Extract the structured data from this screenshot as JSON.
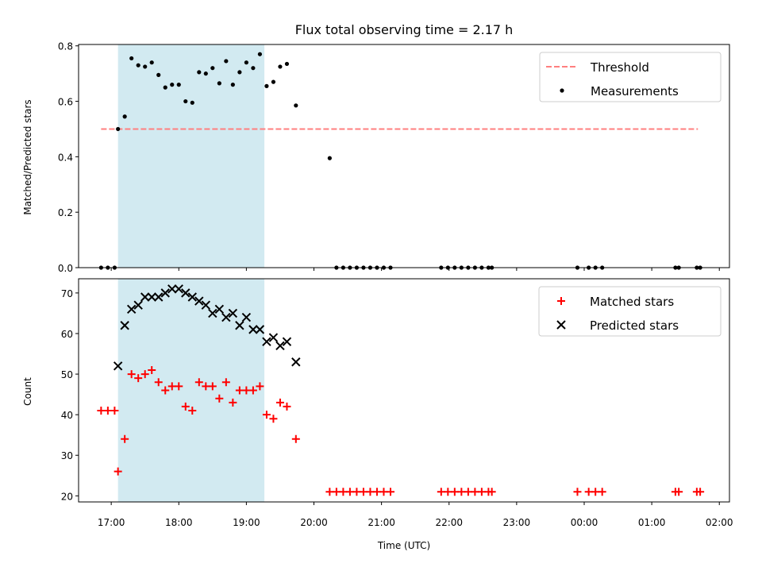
{
  "figure": {
    "title": "Flux total observing time = 2.17 h",
    "xlabel": "Time (UTC)",
    "x_tick_labels": [
      "17:00",
      "18:00",
      "19:00",
      "20:00",
      "21:00",
      "22:00",
      "23:00",
      "00:00",
      "01:00",
      "02:00"
    ]
  },
  "chart_data": [
    {
      "type": "scatter",
      "panel": "top",
      "ylabel": "Matched/Predicted stars",
      "xlim": [
        "16:31",
        "02:09"
      ],
      "ylim": [
        0,
        0.805
      ],
      "y_ticks": [
        0.0,
        0.2,
        0.4,
        0.6,
        0.8
      ],
      "y_tick_labels": [
        "0.0",
        "0.2",
        "0.4",
        "0.6",
        "0.8"
      ],
      "shaded_x_range": [
        "17:06",
        "19:16"
      ],
      "shade_color": "#add8e6",
      "legend_position": "upper right",
      "series": [
        {
          "name": "Threshold",
          "kind": "dashed-line",
          "color": "#ff7f7f",
          "x": [
            "16:51",
            "01:41"
          ],
          "y": [
            0.5,
            0.5
          ]
        },
        {
          "name": "Measurements",
          "kind": "dots",
          "color": "#000000",
          "x": [
            "16:51",
            "16:57",
            "17:03",
            "17:06",
            "17:12",
            "17:18",
            "17:24",
            "17:30",
            "17:36",
            "17:42",
            "17:48",
            "17:54",
            "18:00",
            "18:06",
            "18:12",
            "18:18",
            "18:24",
            "18:30",
            "18:36",
            "18:42",
            "18:48",
            "18:54",
            "19:00",
            "19:06",
            "19:12",
            "19:18",
            "19:24",
            "19:30",
            "19:36",
            "19:44",
            "20:14",
            "20:20",
            "20:26",
            "20:32",
            "20:38",
            "20:44",
            "20:50",
            "20:56",
            "21:02",
            "21:08",
            "21:53",
            "21:59",
            "22:05",
            "22:11",
            "22:17",
            "22:23",
            "22:29",
            "22:35",
            "22:38",
            "23:54",
            "24:04",
            "24:10",
            "24:16",
            "25:21",
            "25:24",
            "25:40",
            "25:43"
          ],
          "y": [
            0,
            0,
            0,
            0.5,
            0.545,
            0.755,
            0.73,
            0.725,
            0.74,
            0.695,
            0.65,
            0.66,
            0.66,
            0.6,
            0.595,
            0.705,
            0.7,
            0.72,
            0.665,
            0.745,
            0.66,
            0.705,
            0.74,
            0.72,
            0.77,
            0.655,
            0.67,
            0.725,
            0.735,
            0.585,
            0.395,
            0,
            0,
            0,
            0,
            0,
            0,
            0,
            0,
            0,
            0,
            0,
            0,
            0,
            0,
            0,
            0,
            0,
            0,
            0,
            0,
            0,
            0,
            0,
            0,
            0,
            0
          ]
        }
      ]
    },
    {
      "type": "scatter",
      "panel": "bottom",
      "ylabel": "Count",
      "xlim": [
        "16:31",
        "02:09"
      ],
      "ylim": [
        18.5,
        73.5
      ],
      "y_ticks": [
        20,
        30,
        40,
        50,
        60,
        70
      ],
      "y_tick_labels": [
        "20",
        "30",
        "40",
        "50",
        "60",
        "70"
      ],
      "shaded_x_range": [
        "17:06",
        "19:16"
      ],
      "shade_color": "#add8e6",
      "legend_position": "upper right",
      "series": [
        {
          "name": "Matched stars",
          "kind": "plus",
          "color": "#ff0000",
          "x": [
            "16:51",
            "16:57",
            "17:03",
            "17:06",
            "17:12",
            "17:18",
            "17:24",
            "17:30",
            "17:36",
            "17:42",
            "17:48",
            "17:54",
            "18:00",
            "18:06",
            "18:12",
            "18:18",
            "18:24",
            "18:30",
            "18:36",
            "18:42",
            "18:48",
            "18:54",
            "19:00",
            "19:06",
            "19:12",
            "19:18",
            "19:24",
            "19:30",
            "19:36",
            "19:44",
            "20:14",
            "20:20",
            "20:26",
            "20:32",
            "20:38",
            "20:44",
            "20:50",
            "20:56",
            "21:02",
            "21:08",
            "21:53",
            "21:59",
            "22:05",
            "22:11",
            "22:17",
            "22:23",
            "22:29",
            "22:35",
            "22:38",
            "23:54",
            "24:04",
            "24:10",
            "24:16",
            "25:21",
            "25:24",
            "25:40",
            "25:43"
          ],
          "y": [
            41,
            41,
            41,
            26,
            34,
            50,
            49,
            50,
            51,
            48,
            46,
            47,
            47,
            42,
            41,
            48,
            47,
            47,
            44,
            48,
            43,
            46,
            46,
            46,
            47,
            40,
            39,
            43,
            42,
            34,
            21,
            21,
            21,
            21,
            21,
            21,
            21,
            21,
            21,
            21,
            21,
            21,
            21,
            21,
            21,
            21,
            21,
            21,
            21,
            21,
            21,
            21,
            21,
            21,
            21,
            21,
            21
          ]
        },
        {
          "name": "Predicted stars",
          "kind": "x",
          "color": "#000000",
          "x": [
            "17:06",
            "17:12",
            "17:18",
            "17:24",
            "17:30",
            "17:36",
            "17:42",
            "17:48",
            "17:54",
            "18:00",
            "18:06",
            "18:12",
            "18:18",
            "18:24",
            "18:30",
            "18:36",
            "18:42",
            "18:48",
            "18:54",
            "19:00",
            "19:06",
            "19:12",
            "19:18",
            "19:24",
            "19:30",
            "19:36",
            "19:44"
          ],
          "y": [
            52,
            62,
            66,
            67,
            69,
            69,
            69,
            70,
            71,
            71,
            70,
            69,
            68,
            67,
            65,
            66,
            64,
            65,
            62,
            64,
            61,
            61,
            58,
            59,
            57,
            58,
            53
          ]
        }
      ]
    }
  ]
}
